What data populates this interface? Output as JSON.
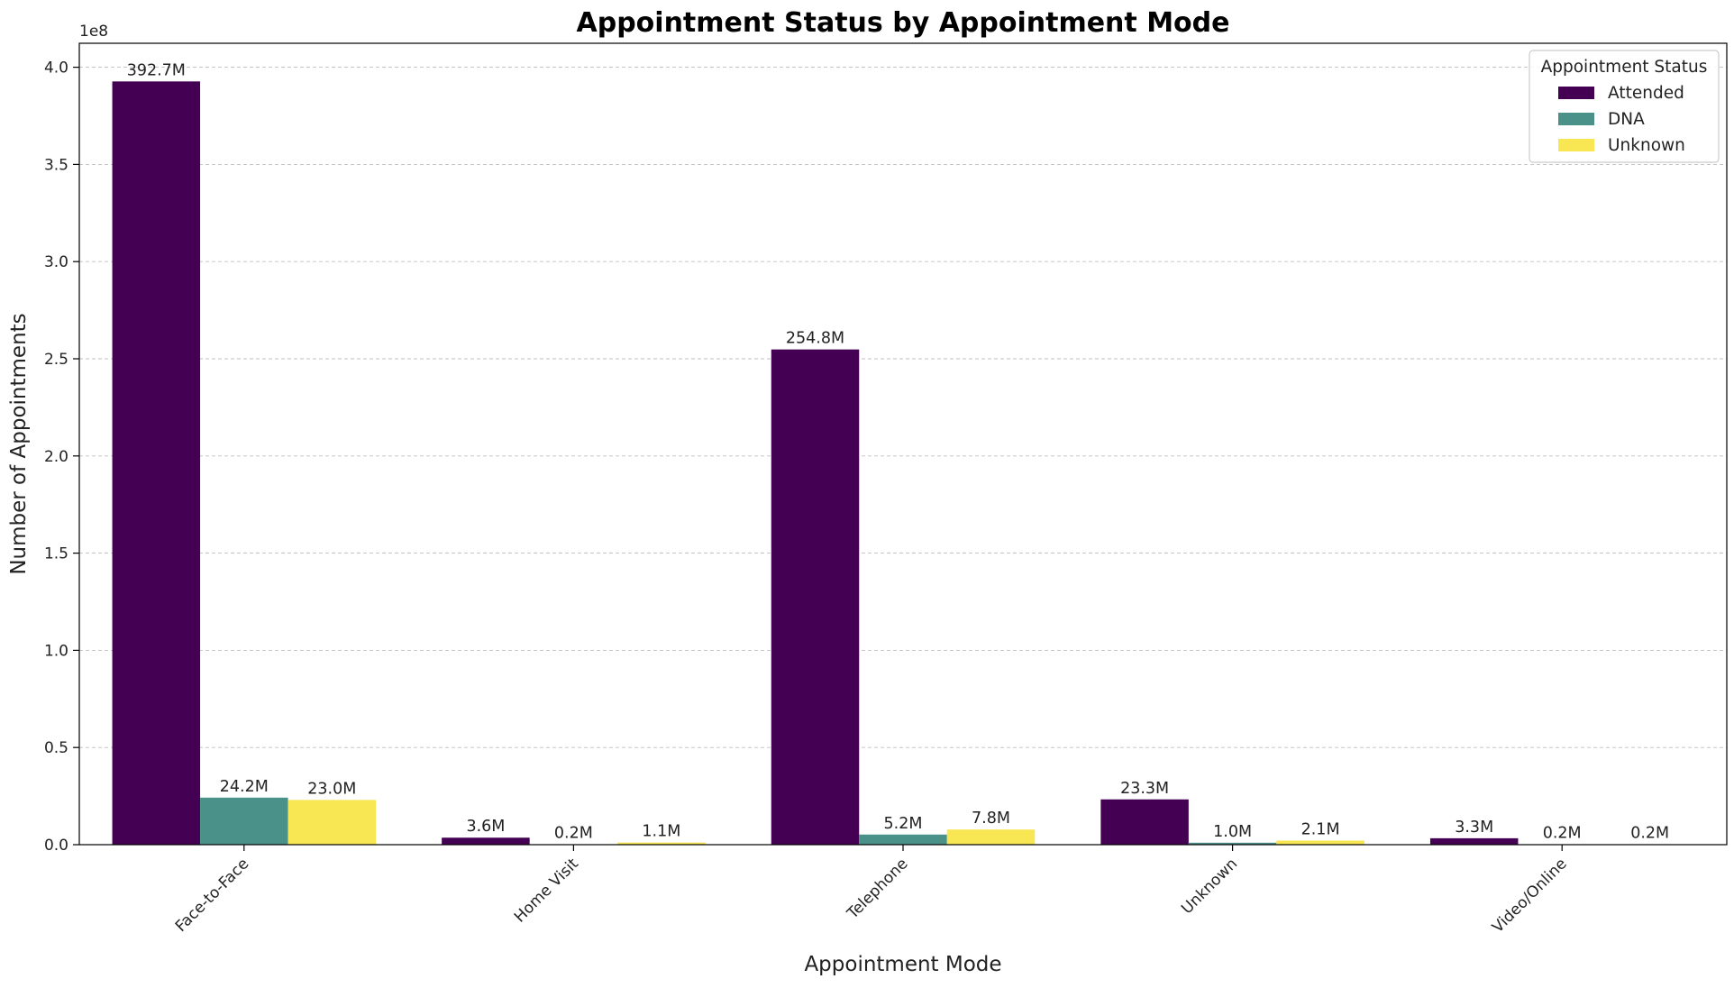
{
  "chart_data": {
    "type": "bar",
    "title": "Appointment Status by Appointment Mode",
    "xlabel": "Appointment Mode",
    "ylabel": "Number of Appointments",
    "y_offset_label": "1e8",
    "categories": [
      "Face-to-Face",
      "Home Visit",
      "Telephone",
      "Unknown",
      "Video/Online"
    ],
    "series": [
      {
        "name": "Attended",
        "color": "#440154",
        "values": [
          392700000,
          3600000,
          254800000,
          23300000,
          3300000
        ],
        "labels": [
          "392.7M",
          "3.6M",
          "254.8M",
          "23.3M",
          "3.3M"
        ]
      },
      {
        "name": "DNA",
        "color": "#4a9189",
        "values": [
          24200000,
          200000,
          5200000,
          1000000,
          200000
        ],
        "labels": [
          "24.2M",
          "0.2M",
          "5.2M",
          "1.0M",
          "0.2M"
        ]
      },
      {
        "name": "Unknown",
        "color": "#f8e652",
        "values": [
          23000000,
          1100000,
          7800000,
          2100000,
          200000
        ],
        "labels": [
          "23.0M",
          "1.1M",
          "7.8M",
          "2.1M",
          "0.2M"
        ]
      }
    ],
    "yticks": [
      0,
      50000000,
      100000000,
      150000000,
      200000000,
      250000000,
      300000000,
      350000000,
      400000000
    ],
    "ytick_labels": [
      "0.0",
      "0.5",
      "1.0",
      "1.5",
      "2.0",
      "2.5",
      "3.0",
      "3.5",
      "4.0"
    ],
    "ylim": [
      0,
      412335000
    ],
    "grid": true,
    "legend_title": "Appointment Status",
    "legend_position": "top-right",
    "xtick_rotation": 45
  }
}
